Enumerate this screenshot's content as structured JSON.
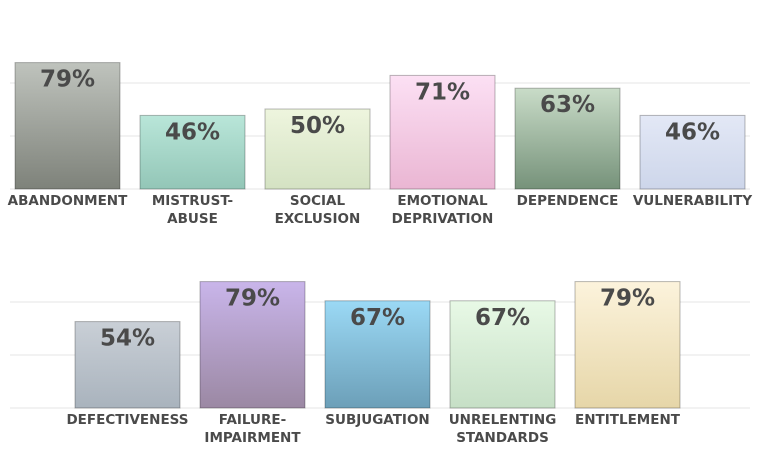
{
  "chart_data": [
    {
      "type": "bar",
      "title": "",
      "xlabel": "",
      "ylabel": "",
      "ylim": [
        0,
        100
      ],
      "grid": true,
      "categories": [
        "ABANDONMENT",
        "MISTRUST-ABUSE",
        "SOCIAL EXCLUSION",
        "EMOTIONAL DEPRIVATION",
        "DEPENDENCE",
        "VULNERABILITY"
      ],
      "category_lines": [
        [
          "ABANDONMENT"
        ],
        [
          "MISTRUST-",
          "ABUSE"
        ],
        [
          "SOCIAL",
          "EXCLUSION"
        ],
        [
          "EMOTIONAL",
          "DEPRIVATION"
        ],
        [
          "DEPENDENCE"
        ],
        [
          "VULNERABILITY"
        ]
      ],
      "values": [
        79,
        46,
        50,
        71,
        63,
        46
      ],
      "value_labels": [
        "79%",
        "46%",
        "50%",
        "71%",
        "63%",
        "46%"
      ],
      "colors": [
        [
          "#bfc3bd",
          "#7e827a"
        ],
        [
          "#b9e6d9",
          "#93c6b7"
        ],
        [
          "#eef5de",
          "#d4e2c3"
        ],
        [
          "#fce0f4",
          "#eab6d3"
        ],
        [
          "#c9dcc8",
          "#76927a"
        ],
        [
          "#e3e8f6",
          "#cdd6ea"
        ]
      ]
    },
    {
      "type": "bar",
      "title": "",
      "xlabel": "",
      "ylabel": "",
      "ylim": [
        0,
        100
      ],
      "grid": true,
      "categories": [
        "DEFECTIVENESS",
        "FAILURE-IMPAIRMENT",
        "SUBJUGATION",
        "UNRELENTING STANDARDS",
        "ENTITLEMENT"
      ],
      "category_lines": [
        [
          "DEFECTIVENESS"
        ],
        [
          "FAILURE-",
          "IMPAIRMENT"
        ],
        [
          "SUBJUGATION"
        ],
        [
          "UNRELENTING",
          "STANDARDS"
        ],
        [
          "ENTITLEMENT"
        ]
      ],
      "values": [
        54,
        79,
        67,
        67,
        79
      ],
      "value_labels": [
        "54%",
        "79%",
        "67%",
        "67%",
        "79%"
      ],
      "colors": [
        [
          "#c9cfd6",
          "#a9b3bd"
        ],
        [
          "#c9b5ea",
          "#9b88a3"
        ],
        [
          "#9bd9f5",
          "#6c9fb8"
        ],
        [
          "#e8f9e6",
          "#c6dfc6"
        ],
        [
          "#fcf3dc",
          "#e6d6a8"
        ]
      ]
    }
  ]
}
